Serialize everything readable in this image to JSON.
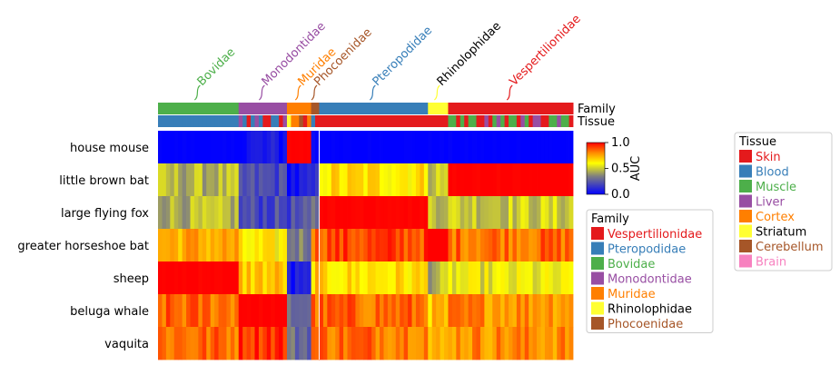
{
  "chart_data": {
    "type": "heatmap",
    "rows": [
      "house mouse",
      "little brown bat",
      "large flying fox",
      "greater horseshoe bat",
      "sheep",
      "beluga whale",
      "vaquita"
    ],
    "family_groups": [
      {
        "name": "Bovidae",
        "color": "#4daf4a",
        "n_columns": 20
      },
      {
        "name": "Monodontidae",
        "color": "#984ea3",
        "n_columns": 12
      },
      {
        "name": "Muridae",
        "color": "#ff7f00",
        "n_columns": 6
      },
      {
        "name": "Phocoenidae",
        "color": "#a65628",
        "n_columns": 2
      },
      {
        "name": "Pteropodidae",
        "color": "#377eb8",
        "n_columns": 27
      },
      {
        "name": "Rhinolophidae",
        "color": "#ffff33",
        "n_columns": 5
      },
      {
        "name": "Vespertilionidae",
        "color": "#e41a1c",
        "n_columns": 31
      }
    ],
    "track_labels": {
      "family": "Family",
      "tissue": "Tissue"
    },
    "colorbar": {
      "label": "AUC",
      "min": 0.0,
      "max": 1.0,
      "ticks": [
        "1.0",
        "0.5",
        "0.0"
      ]
    },
    "block_auc": {
      "house mouse": {
        "Bovidae": 0.0,
        "Monodontidae": 0.05,
        "Muridae": 1.0,
        "Phocoenidae": 0.05,
        "Pteropodidae": 0.0,
        "Rhinolophidae": 0.0,
        "Vespertilionidae": 0.0
      },
      "little brown bat": {
        "Bovidae": 0.45,
        "Monodontidae": 0.2,
        "Muridae": 0.05,
        "Phocoenidae": 0.1,
        "Pteropodidae": 0.65,
        "Rhinolophidae": 0.5,
        "Vespertilionidae": 1.0
      },
      "large flying fox": {
        "Bovidae": 0.45,
        "Monodontidae": 0.2,
        "Muridae": 0.2,
        "Phocoenidae": 0.3,
        "Pteropodidae": 1.0,
        "Rhinolophidae": 0.5,
        "Vespertilionidae": 0.5
      },
      "greater horseshoe bat": {
        "Bovidae": 0.75,
        "Monodontidae": 0.6,
        "Muridae": 0.35,
        "Phocoenidae": 0.85,
        "Pteropodidae": 0.9,
        "Rhinolophidae": 1.0,
        "Vespertilionidae": 0.85
      },
      "sheep": {
        "Bovidae": 1.0,
        "Monodontidae": 0.7,
        "Muridae": 0.05,
        "Phocoenidae": 0.7,
        "Pteropodidae": 0.65,
        "Rhinolophidae": 0.45,
        "Vespertilionidae": 0.55
      },
      "beluga whale": {
        "Bovidae": 0.85,
        "Monodontidae": 1.0,
        "Muridae": 0.3,
        "Phocoenidae": 0.85,
        "Pteropodidae": 0.85,
        "Rhinolophidae": 0.7,
        "Vespertilionidae": 0.8
      },
      "vaquita": {
        "Bovidae": 0.85,
        "Monodontidae": 0.95,
        "Muridae": 0.3,
        "Phocoenidae": 0.85,
        "Pteropodidae": 0.85,
        "Rhinolophidae": 0.7,
        "Vespertilionidae": 0.8
      }
    },
    "legend_family": {
      "title": "Family",
      "items": [
        {
          "label": "Vespertilionidae",
          "color": "#e41a1c"
        },
        {
          "label": "Pteropodidae",
          "color": "#377eb8"
        },
        {
          "label": "Bovidae",
          "color": "#4daf4a"
        },
        {
          "label": "Monodontidae",
          "color": "#984ea3"
        },
        {
          "label": "Muridae",
          "color": "#ff7f00"
        },
        {
          "label": "Rhinolophidae",
          "color": "#000000",
          "swatch": "#ffff33"
        },
        {
          "label": "Phocoenidae",
          "color": "#a65628"
        }
      ]
    },
    "legend_tissue": {
      "title": "Tissue",
      "items": [
        {
          "label": "Skin",
          "color": "#e41a1c"
        },
        {
          "label": "Blood",
          "color": "#377eb8"
        },
        {
          "label": "Muscle",
          "color": "#4daf4a"
        },
        {
          "label": "Liver",
          "color": "#984ea3"
        },
        {
          "label": "Cortex",
          "color": "#ff7f00"
        },
        {
          "label": "Striatum",
          "color": "#000000",
          "swatch": "#ffff33"
        },
        {
          "label": "Cerebellum",
          "color": "#a65628"
        },
        {
          "label": "Brain",
          "color": "#f781bf"
        }
      ]
    }
  }
}
